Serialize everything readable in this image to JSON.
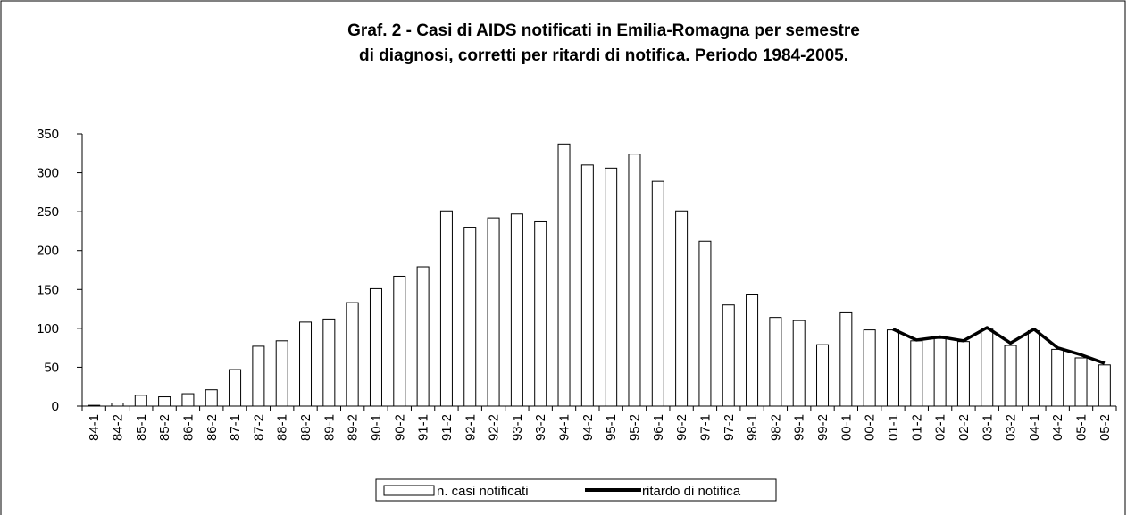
{
  "chart_data": {
    "type": "bar",
    "title": [
      "Graf. 2 - Casi di AIDS notificati in Emilia-Romagna per semestre",
      "di diagnosi, corretti per ritardi di notifica. Periodo 1984-2005."
    ],
    "categories": [
      "84-1",
      "84-2",
      "85-1",
      "85-2",
      "86-1",
      "86-2",
      "87-1",
      "87-2",
      "88-1",
      "88-2",
      "89-1",
      "89-2",
      "90-1",
      "90-2",
      "91-1",
      "91-2",
      "92-1",
      "92-2",
      "93-1",
      "93-2",
      "94-1",
      "94-2",
      "95-1",
      "95-2",
      "96-1",
      "96-2",
      "97-1",
      "97-2",
      "98-1",
      "98-2",
      "99-1",
      "99-2",
      "00-1",
      "00-2",
      "01-1",
      "01-2",
      "02-1",
      "02-2",
      "03-1",
      "03-2",
      "04-1",
      "04-2",
      "05-1",
      "05-2"
    ],
    "series": [
      {
        "name": "n. casi notificati",
        "type": "bar",
        "color": "#ffffff",
        "values": [
          1,
          4,
          14,
          12,
          16,
          21,
          47,
          77,
          84,
          108,
          112,
          133,
          151,
          167,
          179,
          251,
          230,
          242,
          247,
          237,
          337,
          310,
          306,
          324,
          289,
          251,
          212,
          130,
          144,
          114,
          110,
          79,
          120,
          98,
          98,
          84,
          87,
          83,
          99,
          78,
          97,
          73,
          62,
          53
        ]
      },
      {
        "name": "ritardo di notifica",
        "type": "line",
        "color": "#000000",
        "values": [
          null,
          null,
          null,
          null,
          null,
          null,
          null,
          null,
          null,
          null,
          null,
          null,
          null,
          null,
          null,
          null,
          null,
          null,
          null,
          null,
          null,
          null,
          null,
          null,
          null,
          null,
          null,
          null,
          null,
          null,
          null,
          null,
          null,
          null,
          99,
          85,
          89,
          84,
          101,
          81,
          99,
          75,
          66,
          55
        ]
      }
    ],
    "ylim": [
      0,
      350
    ],
    "yticks": [
      0,
      50,
      100,
      150,
      200,
      250,
      300,
      350
    ],
    "legend": "bottom"
  }
}
